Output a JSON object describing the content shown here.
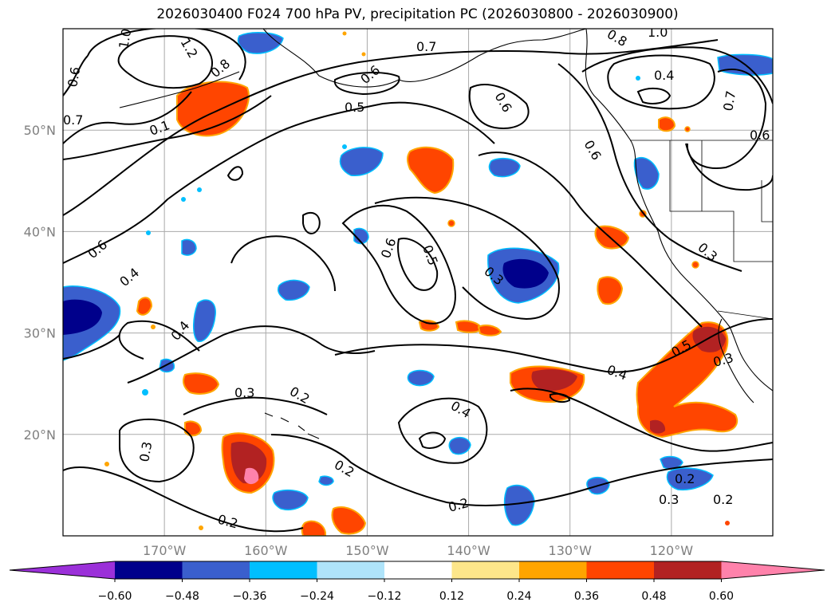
{
  "title": "2026030400 F024 700 hPa PV, precipitation PC (2026030800 - 2026030900)",
  "map": {
    "lat_labels": [
      "50°N",
      "40°N",
      "30°N",
      "20°N"
    ],
    "lon_labels": [
      "170°W",
      "160°W",
      "150°W",
      "140°W",
      "130°W",
      "120°W"
    ],
    "lat_values": [
      50,
      40,
      30,
      20
    ],
    "lon_values": [
      -170,
      -160,
      -150,
      -140,
      -130,
      -120
    ],
    "extent": {
      "lon": [
        -180,
        -110
      ],
      "lat": [
        10,
        60
      ]
    },
    "contour_labels": [
      "1.0",
      "1.2",
      "0.6",
      "0.7",
      "0.8",
      "0.7",
      "0.8",
      "1.0",
      "0.4",
      "0.6",
      "0.5",
      "0.6",
      "0.7",
      "0.6",
      "0.6",
      "0.6",
      "0.4",
      "0.6",
      "0.5",
      "0.3",
      "0.3",
      "0.4",
      "0.5",
      "0.3",
      "0.4",
      "0.3",
      "0.2",
      "0.4",
      "0.2",
      "0.2",
      "0.2",
      "0.3",
      "0.2",
      "0.3",
      "0.2",
      "0.1"
    ]
  },
  "colorbar": {
    "ticks": [
      "−0.60",
      "−0.48",
      "−0.36",
      "−0.24",
      "−0.12",
      "0.12",
      "0.24",
      "0.36",
      "0.48",
      "0.60"
    ],
    "colors": [
      "#9b30d9",
      "#00008b",
      "#3a5fcd",
      "#00bfff",
      "#afe4fa",
      "#ffffff",
      "#fde68a",
      "#ffa500",
      "#ff4500",
      "#b22222",
      "#ff82ab"
    ]
  }
}
